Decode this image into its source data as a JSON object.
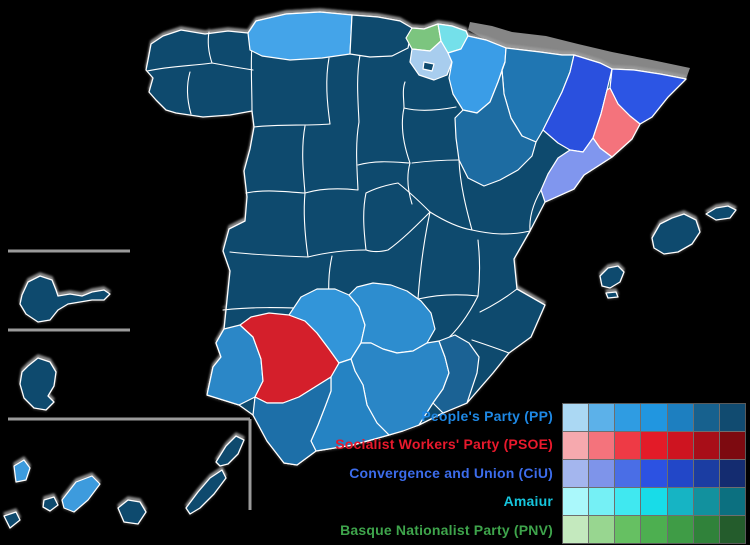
{
  "legend": {
    "parties": [
      {
        "id": "pp",
        "label": "People's Party (PP)",
        "label_color": "#1e88e4",
        "shades": [
          "#abd8f3",
          "#5cb1e9",
          "#2f9ce2",
          "#2196e0",
          "#1d7fc0",
          "#17618e",
          "#114b70"
        ]
      },
      {
        "id": "psoe",
        "label": "Socialist Workers' Party (PSOE)",
        "label_color": "#e8192c",
        "shades": [
          "#f6a9ae",
          "#f4737c",
          "#ee3a45",
          "#e31b28",
          "#ce1420",
          "#a80e18",
          "#7d0a10"
        ]
      },
      {
        "id": "ciu",
        "label": "Convergence and Union (CiU)",
        "label_color": "#3c6ceb",
        "shades": [
          "#a4b6ee",
          "#7e94ea",
          "#4a6ee6",
          "#2c52e2",
          "#2247c8",
          "#1b3da2",
          "#142c70"
        ]
      },
      {
        "id": "amaiur",
        "label": "Amaiur",
        "label_color": "#16c5dd",
        "shades": [
          "#aaf8fb",
          "#75f0f5",
          "#40e8f0",
          "#18dce8",
          "#16b4c4",
          "#12919e",
          "#0c7080"
        ]
      },
      {
        "id": "pnv",
        "label": "Basque Nationalist Party (PNV)",
        "label_color": "#3ea44b",
        "shades": [
          "#c4e9be",
          "#98d690",
          "#66c062",
          "#4daf50",
          "#3f9c46",
          "#30823a",
          "#245c2c"
        ]
      }
    ]
  },
  "map": {
    "base_color": "#0e4a6e",
    "border_color": "#ffffff",
    "neighbor_color": "#a8a8a8",
    "inset_line_color": "#9a9a9a",
    "provinces": {
      "asturias": "#44a4e9",
      "bizkaia": "#7cc57f",
      "gipuzkoa": "#74e0ea",
      "araba": "#a8cdee",
      "navarra": "#3a9de7",
      "huesca": "#2076b2",
      "zaragoza": "#1d6ca2",
      "lleida": "#2a50de",
      "girona": "#2c55e4",
      "barcelona": "#f4737c",
      "tarragona": "#8096ee",
      "huelva": "#2b87c7",
      "sevilla": "#d41f2b",
      "cordoba": "#3295d9",
      "jaen": "#2d8dcf",
      "granada": "#2a86c6",
      "malaga": "#2583c3",
      "cadiz": "#1d6fa8",
      "almeria": "#1b6294",
      "tenerife": "#3d9bdd",
      "la_palma": "#3d9bdd"
    }
  }
}
